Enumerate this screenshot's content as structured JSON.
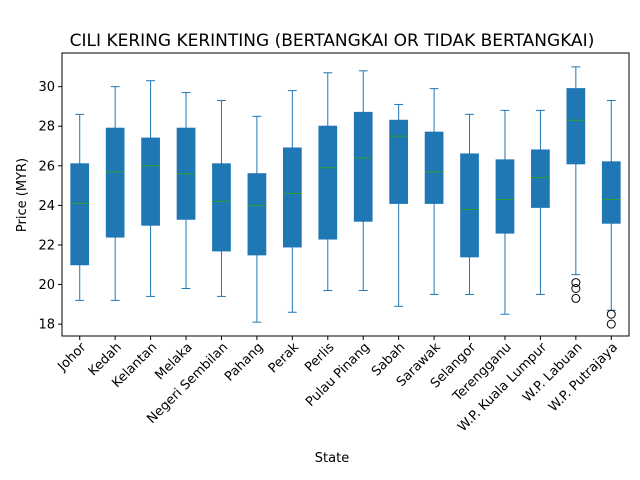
{
  "chart_data": {
    "type": "box",
    "title": "CILI KERING KERINTING (BERTANGKAI OR TIDAK BERTANGKAI)",
    "xlabel": "State",
    "ylabel": "Price (MYR)",
    "ylim": [
      17.4,
      31.7
    ],
    "yticks": [
      18,
      20,
      22,
      24,
      26,
      28,
      30
    ],
    "grid": false,
    "box_color": "#1f77b4",
    "median_color": "#2ca02c",
    "categories": [
      "Johor",
      "Kedah",
      "Kelantan",
      "Melaka",
      "Negeri Sembilan",
      "Pahang",
      "Perak",
      "Perlis",
      "Pulau Pinang",
      "Sabah",
      "Sarawak",
      "Selangor",
      "Terengganu",
      "W.P. Kuala Lumpur",
      "W.P. Labuan",
      "W.P. Putrajaya"
    ],
    "boxes": [
      {
        "whislo": 19.2,
        "q1": 21.0,
        "med": 24.1,
        "q3": 26.1,
        "whishi": 28.6,
        "fliers": []
      },
      {
        "whislo": 19.2,
        "q1": 22.4,
        "med": 25.7,
        "q3": 27.9,
        "whishi": 30.0,
        "fliers": []
      },
      {
        "whislo": 19.4,
        "q1": 23.0,
        "med": 26.0,
        "q3": 27.4,
        "whishi": 30.3,
        "fliers": []
      },
      {
        "whislo": 19.8,
        "q1": 23.3,
        "med": 25.6,
        "q3": 27.9,
        "whishi": 29.7,
        "fliers": []
      },
      {
        "whislo": 19.4,
        "q1": 21.7,
        "med": 24.2,
        "q3": 26.1,
        "whishi": 29.3,
        "fliers": []
      },
      {
        "whislo": 18.1,
        "q1": 21.5,
        "med": 24.0,
        "q3": 25.6,
        "whishi": 28.5,
        "fliers": []
      },
      {
        "whislo": 18.6,
        "q1": 21.9,
        "med": 24.6,
        "q3": 26.9,
        "whishi": 29.8,
        "fliers": []
      },
      {
        "whislo": 19.7,
        "q1": 22.3,
        "med": 25.9,
        "q3": 28.0,
        "whishi": 30.7,
        "fliers": []
      },
      {
        "whislo": 19.7,
        "q1": 23.2,
        "med": 26.4,
        "q3": 28.7,
        "whishi": 30.8,
        "fliers": []
      },
      {
        "whislo": 18.9,
        "q1": 24.1,
        "med": 27.5,
        "q3": 28.3,
        "whishi": 29.1,
        "fliers": []
      },
      {
        "whislo": 19.5,
        "q1": 24.1,
        "med": 25.7,
        "q3": 27.7,
        "whishi": 29.9,
        "fliers": []
      },
      {
        "whislo": 19.5,
        "q1": 21.4,
        "med": 23.8,
        "q3": 26.6,
        "whishi": 28.6,
        "fliers": []
      },
      {
        "whislo": 18.5,
        "q1": 22.6,
        "med": 24.3,
        "q3": 26.3,
        "whishi": 28.8,
        "fliers": []
      },
      {
        "whislo": 19.5,
        "q1": 23.9,
        "med": 25.4,
        "q3": 26.8,
        "whishi": 28.8,
        "fliers": []
      },
      {
        "whislo": 20.5,
        "q1": 26.1,
        "med": 28.3,
        "q3": 29.9,
        "whishi": 31.0,
        "fliers": [
          20.1,
          19.8,
          19.3
        ]
      },
      {
        "whislo": 18.7,
        "q1": 23.1,
        "med": 24.3,
        "q3": 26.2,
        "whishi": 29.3,
        "fliers": [
          18.5,
          18.0
        ]
      }
    ]
  }
}
